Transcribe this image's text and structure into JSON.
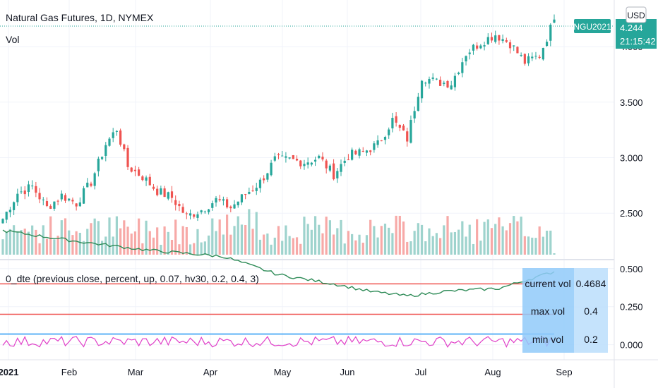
{
  "header": {
    "symbol_title": "Natural Gas Futures, 1D, NYMEX",
    "volume_label": "Vol",
    "currency_button": "USD"
  },
  "price_badge": {
    "ticker": "NGU2021",
    "price": "4.244",
    "countdown": "21:15:42",
    "color": "#26a69a"
  },
  "indicator": {
    "title": "0_dte (previous close, percent, up, 0.07, hv30, 0.2, 0.4, 3)",
    "table": [
      {
        "label": "current vol",
        "value": "0.4684"
      },
      {
        "label": "max vol",
        "value": "0.4"
      },
      {
        "label": "min vol",
        "value": "0.2"
      }
    ],
    "y_ticks": [
      {
        "value": 0.5,
        "label": "0.500"
      },
      {
        "value": 0.25,
        "label": "0.250"
      },
      {
        "value": 0.0,
        "label": "0.000"
      }
    ],
    "ylim": [
      -0.09,
      0.55
    ],
    "max_level": 0.4,
    "min_level": 0.2,
    "blue_level": 0.07,
    "colors": {
      "hv": "#2e8b57",
      "line": "#e040c8",
      "level_red": "#ef5350",
      "level_blue": "#2196f3"
    }
  },
  "time_axis": [
    "2021",
    "Feb",
    "Mar",
    "Apr",
    "May",
    "Jun",
    "Jul",
    "Aug",
    "Sep"
  ],
  "chart_data": {
    "type": "candlestick",
    "title": "Natural Gas Futures, 1D, NYMEX",
    "y_ticks": [
      {
        "value": 4.0,
        "label": "4.000"
      },
      {
        "value": 3.5,
        "label": "3.500"
      },
      {
        "value": 3.0,
        "label": "3.000"
      },
      {
        "value": 2.5,
        "label": "2.500"
      }
    ],
    "ylim": [
      2.12,
      4.42
    ],
    "up_color": "#26a69a",
    "down_color": "#ef5350",
    "close_path": [
      [
        0,
        2.45
      ],
      [
        4,
        2.68
      ],
      [
        8,
        2.74
      ],
      [
        12,
        2.55
      ],
      [
        16,
        2.66
      ],
      [
        20,
        2.59
      ],
      [
        24,
        2.78
      ],
      [
        28,
        3.12
      ],
      [
        31,
        3.26
      ],
      [
        34,
        2.92
      ],
      [
        38,
        2.83
      ],
      [
        42,
        2.7
      ],
      [
        46,
        2.64
      ],
      [
        50,
        2.47
      ],
      [
        54,
        2.53
      ],
      [
        58,
        2.62
      ],
      [
        62,
        2.55
      ],
      [
        66,
        2.67
      ],
      [
        70,
        2.78
      ],
      [
        74,
        2.98
      ],
      [
        78,
        2.98
      ],
      [
        82,
        2.96
      ],
      [
        86,
        3.0
      ],
      [
        90,
        2.85
      ],
      [
        94,
        3.02
      ],
      [
        98,
        3.05
      ],
      [
        102,
        3.12
      ],
      [
        106,
        3.34
      ],
      [
        110,
        3.17
      ],
      [
        114,
        3.73
      ],
      [
        118,
        3.68
      ],
      [
        122,
        3.67
      ],
      [
        126,
        3.94
      ],
      [
        130,
        4.04
      ],
      [
        134,
        4.11
      ],
      [
        138,
        4.03
      ],
      [
        142,
        3.86
      ],
      [
        146,
        3.92
      ],
      [
        150,
        4.244
      ]
    ]
  }
}
